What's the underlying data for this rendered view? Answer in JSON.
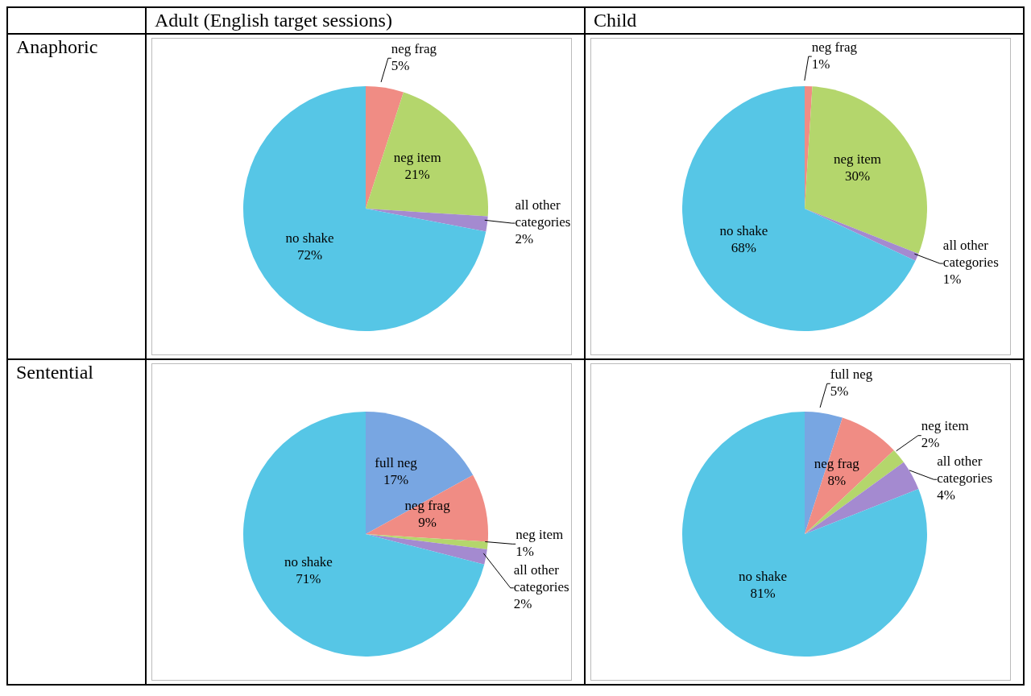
{
  "chart_data": [
    {
      "type": "pie",
      "title": "Adult (English target sessions)",
      "ylabel": "Anaphoric",
      "categories": [
        "neg frag",
        "neg item",
        "all other categories",
        "no shake"
      ],
      "values": [
        5,
        21,
        2,
        72
      ],
      "value_labels": [
        "5%",
        "21%",
        "2%",
        "72%"
      ],
      "colors": [
        "#f08c84",
        "#b4d66c",
        "#a48ad0",
        "#56c6e6"
      ],
      "legend": false
    },
    {
      "type": "pie",
      "title": "Child",
      "categories": [
        "neg frag",
        "neg item",
        "all other categories",
        "no shake"
      ],
      "values": [
        1,
        30,
        1,
        68
      ],
      "value_labels": [
        "1%",
        "30%",
        "1%",
        "68%"
      ],
      "colors": [
        "#f08c84",
        "#b4d66c",
        "#a48ad0",
        "#56c6e6"
      ],
      "legend": false
    },
    {
      "type": "pie",
      "ylabel": "Sentential",
      "categories": [
        "full neg",
        "neg frag",
        "neg item",
        "all other categories",
        "no shake"
      ],
      "values": [
        17,
        9,
        1,
        2,
        71
      ],
      "value_labels": [
        "17%",
        "9%",
        "1%",
        "2%",
        "71%"
      ],
      "colors": [
        "#78a6e2",
        "#f08c84",
        "#b4d66c",
        "#a48ad0",
        "#56c6e6"
      ],
      "legend": false
    },
    {
      "type": "pie",
      "categories": [
        "full neg",
        "neg frag",
        "neg item",
        "all other categories",
        "no shake"
      ],
      "values": [
        5,
        8,
        2,
        4,
        81
      ],
      "value_labels": [
        "5%",
        "8%",
        "2%",
        "4%",
        "81%"
      ],
      "colors": [
        "#78a6e2",
        "#f08c84",
        "#b4d66c",
        "#a48ad0",
        "#56c6e6"
      ],
      "legend": false
    }
  ]
}
